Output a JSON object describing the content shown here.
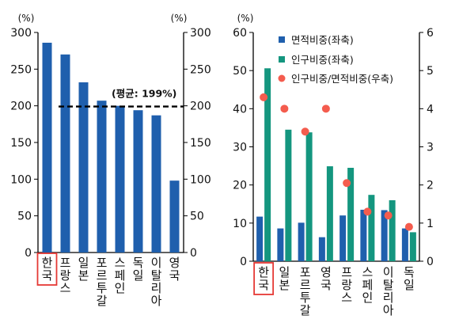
{
  "chart_data": [
    {
      "type": "bar",
      "categories": [
        "한국",
        "프랑스",
        "일본",
        "포르투갈",
        "스페인",
        "독일",
        "이탈리아",
        "영국"
      ],
      "values": [
        286,
        270,
        232,
        207,
        200,
        194,
        187,
        98
      ],
      "ylim": [
        0,
        300
      ],
      "yticks": [
        0,
        50,
        100,
        150,
        200,
        250,
        300
      ],
      "left_unit": "(%)",
      "right_unit": "(%)",
      "bar_color": "#1f5fad",
      "reference_line": {
        "value": 199,
        "label": "(평균: 199%)",
        "style": "dashed"
      },
      "highlight_category": "한국",
      "highlight_color": "#e53935",
      "grid": false
    },
    {
      "type": "bar",
      "categories": [
        "한국",
        "일본",
        "포르투갈",
        "영국",
        "프랑스",
        "스페인",
        "이탈리아",
        "독일"
      ],
      "series": [
        {
          "name": "면적비중(좌축)",
          "type": "bar",
          "axis": "left",
          "color": "#1f5fad",
          "values": [
            11.7,
            8.6,
            10.1,
            6.3,
            12.0,
            13.5,
            13.4,
            8.6
          ]
        },
        {
          "name": "인구비중(좌축)",
          "type": "bar",
          "axis": "left",
          "color": "#14967f",
          "values": [
            50.6,
            34.5,
            33.8,
            24.9,
            24.5,
            17.4,
            16.0,
            7.6
          ]
        },
        {
          "name": "인구비중/면적비중(우축)",
          "type": "scatter",
          "axis": "right",
          "color": "#f45c4e",
          "values": [
            4.3,
            4.0,
            3.4,
            4.0,
            2.05,
            1.3,
            1.2,
            0.9
          ]
        }
      ],
      "ylim": [
        0,
        60
      ],
      "yticks": [
        0,
        10,
        20,
        30,
        40,
        50,
        60
      ],
      "y2lim": [
        0,
        6
      ],
      "y2ticks": [
        0,
        1,
        2,
        3,
        4,
        5,
        6
      ],
      "left_unit": "(%)",
      "legend_position": "top-left",
      "highlight_category": "한국",
      "highlight_color": "#e53935",
      "grid": false
    }
  ]
}
